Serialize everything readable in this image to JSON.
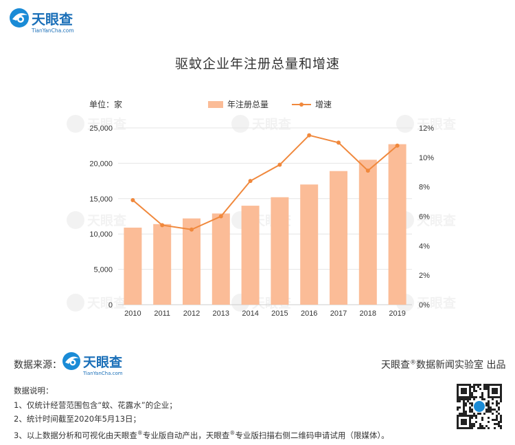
{
  "brand": {
    "name": "天眼查",
    "domain": "TianYanCha.com",
    "primary_color": "#1a8bd6",
    "accent_color": "#3ab0f0"
  },
  "chart_data": {
    "type": "bar",
    "title": "驱蚊企业年注册总量和增速",
    "unit_label": "单位：家",
    "categories": [
      "2010",
      "2011",
      "2012",
      "2013",
      "2014",
      "2015",
      "2016",
      "2017",
      "2018",
      "2019"
    ],
    "series": [
      {
        "name": "年注册总量",
        "type": "bar",
        "axis": "left",
        "color": "#fbbc97",
        "values": [
          10900,
          11400,
          12200,
          12900,
          14000,
          15200,
          17000,
          18900,
          20500,
          22700
        ]
      },
      {
        "name": "增速",
        "type": "line",
        "axis": "right",
        "color": "#f0883c",
        "values": [
          7.1,
          5.4,
          5.1,
          6.0,
          8.4,
          9.5,
          11.5,
          11.0,
          9.1,
          10.8
        ]
      }
    ],
    "y_left": {
      "min": 0,
      "max": 25000,
      "ticks": [
        "0",
        "5,000",
        "10,000",
        "15,000",
        "20,000",
        "25,000"
      ]
    },
    "y_right": {
      "min": 0,
      "max": 12,
      "ticks": [
        "0%",
        "2%",
        "4%",
        "6%",
        "8%",
        "10%",
        "12%"
      ]
    },
    "grid": true,
    "legend_position": "top-center"
  },
  "footer": {
    "source_label": "数据来源：",
    "credit_prefix": "天眼查",
    "credit_reg": "®",
    "credit_suffix": "数据新闻实验室 出品",
    "notes_title": "数据说明：",
    "notes": [
      "1、仅统计经营范围包含“蚊、花露水”的企业；",
      "2、统计时间截至2020年5月13日；"
    ],
    "note3_a": "3、以上数据分析和可视化由天眼查",
    "note3_b": "专业版自动产出，天眼查",
    "note3_c": "专业版扫描右侧二维码申请试用（限媒体）。",
    "reg": "®"
  }
}
